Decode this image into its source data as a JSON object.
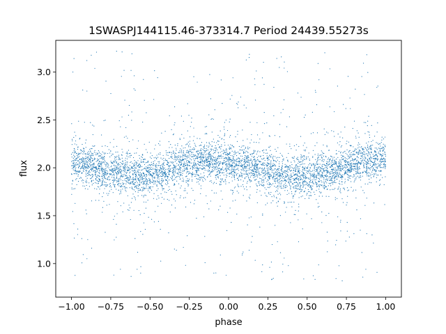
{
  "chart_data": {
    "type": "scatter",
    "title": "1SWASPJ144115.46-373314.7 Period 24439.55273s",
    "xlabel": "phase",
    "ylabel": "flux",
    "xlim": [
      -1.1,
      1.1
    ],
    "ylim": [
      0.65,
      3.33
    ],
    "xticks": [
      -1.0,
      -0.75,
      -0.5,
      -0.25,
      0.0,
      0.25,
      0.5,
      0.75,
      1.0
    ],
    "xtick_labels": [
      "−1.00",
      "−0.75",
      "−0.50",
      "−0.25",
      "0.00",
      "0.25",
      "0.50",
      "0.75",
      "1.00"
    ],
    "yticks": [
      1.0,
      1.5,
      2.0,
      2.5,
      3.0
    ],
    "ytick_labels": [
      "1.0",
      "1.5",
      "2.0",
      "2.5",
      "3.0"
    ],
    "grid": false,
    "marker_color": "#1f77b4",
    "series": [
      {
        "x": [
          -1.0,
          -0.9,
          -0.8,
          -0.7,
          -0.6,
          -0.5,
          -0.4,
          -0.3,
          -0.2,
          -0.1,
          0.0,
          0.1,
          0.2,
          0.3,
          0.4,
          0.5,
          0.6,
          0.7,
          0.8,
          0.9,
          1.0
        ],
        "y": [
          2.05,
          2.04,
          2.0,
          1.95,
          1.93,
          1.92,
          1.96,
          2.02,
          2.06,
          2.07,
          2.05,
          2.02,
          1.98,
          1.94,
          1.91,
          1.9,
          1.95,
          2.01,
          2.05,
          2.07,
          2.07
        ]
      }
    ],
    "x_range_of_points": [
      -1.0,
      1.0
    ],
    "y_range_of_points": [
      0.8,
      3.22
    ],
    "core_spread_y": 0.1
  }
}
